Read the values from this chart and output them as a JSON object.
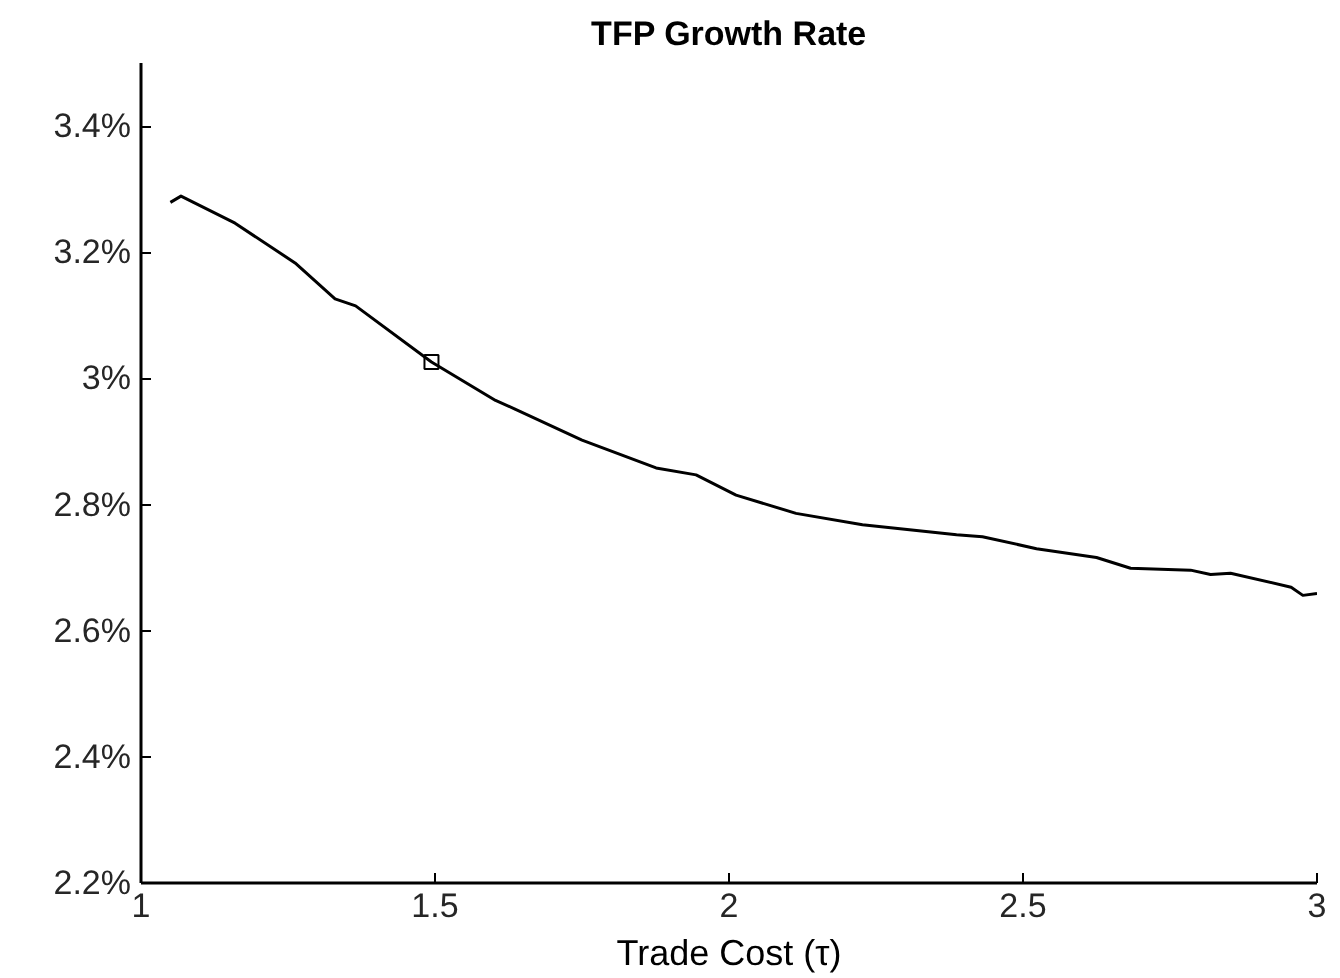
{
  "chart_data": {
    "type": "line",
    "title": "TFP Growth Rate",
    "xlabel": "Trade Cost (τ)",
    "xlim": [
      1,
      3
    ],
    "xticks": [
      1,
      1.5,
      2,
      2.5,
      3
    ],
    "ylim": [
      2.2,
      3.5
    ],
    "yticks": [
      {
        "value": 2.2,
        "label": "2.2%"
      },
      {
        "value": 2.4,
        "label": "2.4%"
      },
      {
        "value": 2.6,
        "label": "2.6%"
      },
      {
        "value": 2.8,
        "label": "2.8%"
      },
      {
        "value": 3.0,
        "label": "3%"
      },
      {
        "value": 3.2,
        "label": "3.2%"
      },
      {
        "value": 3.4,
        "label": "3.4%"
      }
    ],
    "grid": false,
    "marker": "none",
    "line_style": "solid",
    "series": [
      {
        "color": "#000000",
        "x": [
          1.05,
          1.068,
          1.16,
          1.262,
          1.33,
          1.365,
          1.494,
          1.603,
          1.637,
          1.75,
          1.876,
          1.944,
          2.012,
          2.114,
          2.227,
          2.387,
          2.431,
          2.523,
          2.625,
          2.683,
          2.785,
          2.819,
          2.853,
          2.956,
          2.976,
          3.0
        ],
        "values": [
          3.279,
          3.289,
          3.246,
          3.183,
          3.126,
          3.115,
          3.026,
          2.965,
          2.951,
          2.902,
          2.858,
          2.847,
          2.815,
          2.786,
          2.768,
          2.752,
          2.749,
          2.73,
          2.716,
          2.699,
          2.696,
          2.689,
          2.691,
          2.669,
          2.656,
          2.659
        ]
      },
      {
        "type": "scatter",
        "marker": "square",
        "color": "#000000",
        "x": [
          1.494
        ],
        "values": [
          3.026
        ]
      }
    ]
  }
}
